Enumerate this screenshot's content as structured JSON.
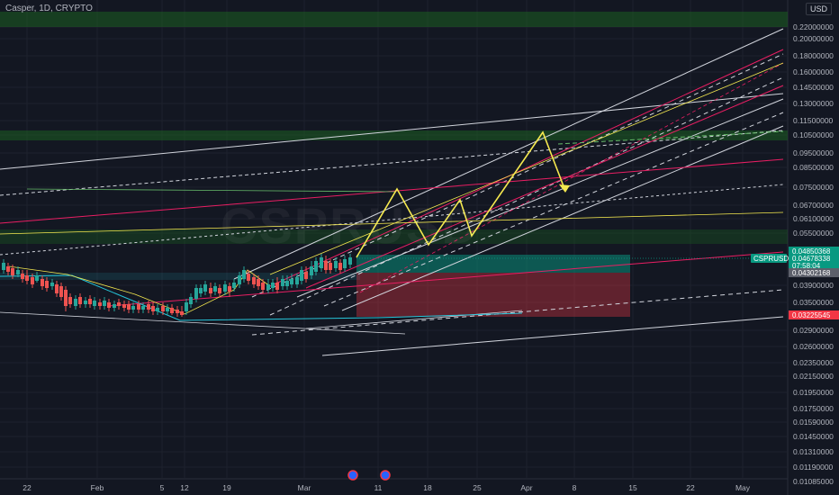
{
  "header": {
    "symbol_title": "Casper, 1D, CRYPTO",
    "currency": "USD"
  },
  "watermark": "CSPRUSD",
  "chart_data": {
    "type": "candlestick",
    "title": "Casper, 1D, CRYPTO",
    "currency": "USD",
    "y_ticks": [
      "0.22000000",
      "0.20000000",
      "0.18000000",
      "0.16000000",
      "0.14500000",
      "0.13000000",
      "0.11500000",
      "0.10500000",
      "0.09500000",
      "0.08500000",
      "0.07500000",
      "0.06700000",
      "0.06100000",
      "0.05500000",
      "0.03900000",
      "0.03500000",
      "0.02900000",
      "0.02600000",
      "0.02350000",
      "0.02150000",
      "0.01950000",
      "0.01750000",
      "0.01590000",
      "0.01450000",
      "0.01310000",
      "0.01190000",
      "0.01085000"
    ],
    "x_ticks": [
      "22",
      "Feb",
      "5",
      "12",
      "19",
      "Mar",
      "11",
      "18",
      "25",
      "Apr",
      "8",
      "15",
      "22",
      "May"
    ],
    "price_badges": [
      {
        "label": "",
        "value": "0.04850368",
        "color": "#089981"
      },
      {
        "label": "CSPRUSD",
        "value": "0.04678338",
        "color": "#089981"
      },
      {
        "label": "",
        "value": "07:58:04",
        "color": "#089981"
      },
      {
        "label": "",
        "value": "0.04302168",
        "color": "#5d606b"
      },
      {
        "label": "",
        "value": "0.03225545",
        "color": "#f23645"
      }
    ],
    "colors": {
      "up": "#26a69a",
      "down": "#ef5350",
      "projection": "#f5e94f",
      "pink": "#e91e63",
      "cyan": "#26c6da",
      "white": "#d1d4dc",
      "zone_green": "#1b5e20",
      "zone_red": "#7f1d2a"
    }
  }
}
